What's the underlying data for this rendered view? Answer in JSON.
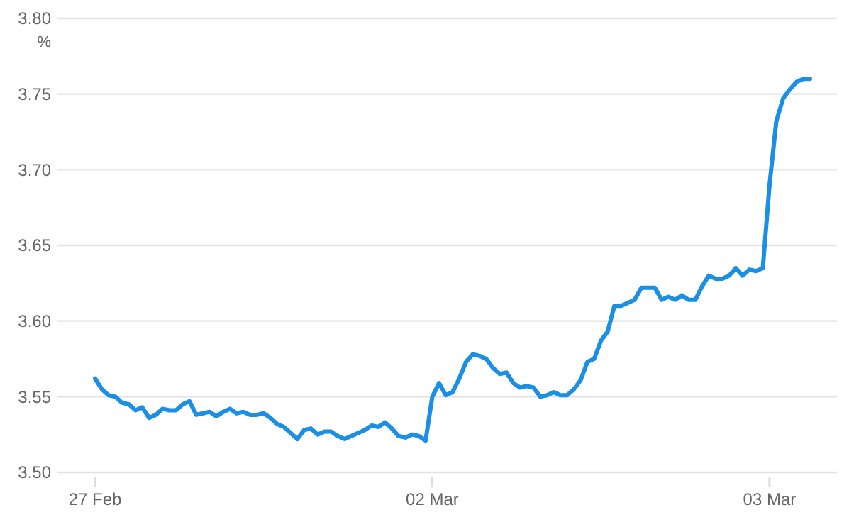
{
  "chart_data": {
    "type": "line",
    "ylabel": "%",
    "ylim": [
      3.5,
      3.8
    ],
    "yticks": [
      {
        "value": 3.5,
        "label": "3.50"
      },
      {
        "value": 3.55,
        "label": "3.55"
      },
      {
        "value": 3.6,
        "label": "3.60"
      },
      {
        "value": 3.65,
        "label": "3.65"
      },
      {
        "value": 3.7,
        "label": "3.70"
      },
      {
        "value": 3.75,
        "label": "3.75"
      },
      {
        "value": 3.8,
        "label": "3.80"
      }
    ],
    "categories": [
      "27 Feb",
      null,
      null,
      null,
      null,
      null,
      null,
      null,
      null,
      null,
      null,
      null,
      null,
      null,
      null,
      null,
      null,
      null,
      null,
      null,
      null,
      null,
      null,
      null,
      null,
      null,
      null,
      null,
      null,
      null,
      null,
      null,
      null,
      null,
      null,
      null,
      null,
      null,
      null,
      null,
      null,
      null,
      null,
      null,
      null,
      null,
      null,
      null,
      null,
      null,
      "02 Mar",
      null,
      null,
      null,
      null,
      null,
      null,
      null,
      null,
      null,
      null,
      null,
      null,
      null,
      null,
      null,
      null,
      null,
      null,
      null,
      null,
      null,
      null,
      null,
      null,
      null,
      null,
      null,
      null,
      null,
      null,
      null,
      null,
      null,
      null,
      null,
      null,
      null,
      null,
      null,
      null,
      null,
      null,
      null,
      null,
      null,
      null,
      null,
      null,
      null,
      "03 Mar",
      null,
      null,
      null,
      null,
      null,
      null
    ],
    "grid": "y",
    "marker": "none",
    "line_style": "solid",
    "series": [
      {
        "color": "#1a8fe3",
        "values": [
          3.562,
          3.555,
          3.551,
          3.55,
          3.546,
          3.545,
          3.541,
          3.543,
          3.536,
          3.538,
          3.542,
          3.541,
          3.541,
          3.545,
          3.547,
          3.538,
          3.539,
          3.54,
          3.537,
          3.54,
          3.542,
          3.539,
          3.54,
          3.538,
          3.538,
          3.539,
          3.536,
          3.532,
          3.53,
          3.526,
          3.522,
          3.528,
          3.529,
          3.525,
          3.527,
          3.527,
          3.524,
          3.522,
          3.524,
          3.526,
          3.528,
          3.531,
          3.53,
          3.533,
          3.529,
          3.524,
          3.523,
          3.525,
          3.524,
          3.521,
          3.55,
          3.559,
          3.551,
          3.553,
          3.562,
          3.573,
          3.578,
          3.577,
          3.575,
          3.569,
          3.565,
          3.566,
          3.559,
          3.556,
          3.557,
          3.556,
          3.55,
          3.551,
          3.553,
          3.551,
          3.551,
          3.555,
          3.561,
          3.573,
          3.575,
          3.587,
          3.593,
          3.61,
          3.61,
          3.612,
          3.614,
          3.622,
          3.622,
          3.622,
          3.614,
          3.616,
          3.614,
          3.617,
          3.614,
          3.614,
          3.623,
          3.63,
          3.628,
          3.628,
          3.63,
          3.635,
          3.63,
          3.634,
          3.633,
          3.635,
          3.69,
          3.732,
          3.747,
          3.753,
          3.758,
          3.76,
          3.76
        ]
      }
    ]
  }
}
